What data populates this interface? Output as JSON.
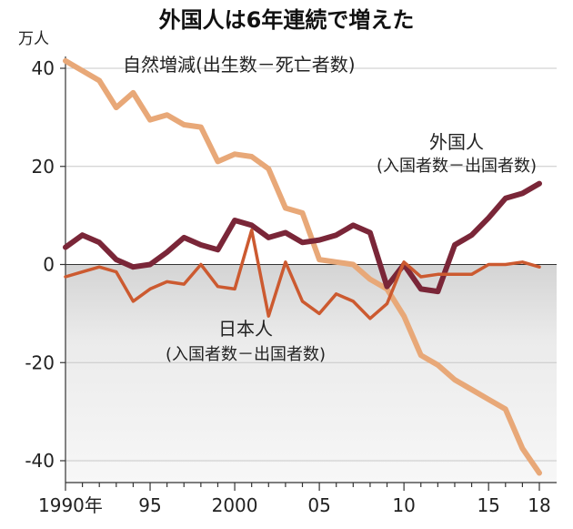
{
  "chart_data": {
    "type": "line",
    "title": "外国人は6年連続で増えた",
    "ylabel": "万人",
    "ylim": [
      -43,
      42
    ],
    "xlim": [
      1990,
      2018
    ],
    "yticks": [
      {
        "value": 40,
        "label": "40"
      },
      {
        "value": 20,
        "label": "20"
      },
      {
        "value": 0,
        "label": "0"
      },
      {
        "value": -20,
        "label": "-20"
      },
      {
        "value": -40,
        "label": "-40"
      }
    ],
    "xticks": [
      {
        "value": 1990,
        "label": "1990年"
      },
      {
        "value": 1995,
        "label": "95"
      },
      {
        "value": 2000,
        "label": "2000"
      },
      {
        "value": 2005,
        "label": "05"
      },
      {
        "value": 2010,
        "label": "10"
      },
      {
        "value": 2015,
        "label": "15"
      },
      {
        "value": 2018,
        "label": "18"
      }
    ],
    "x": [
      1990,
      1991,
      1992,
      1993,
      1994,
      1995,
      1996,
      1997,
      1998,
      1999,
      2000,
      2001,
      2002,
      2003,
      2004,
      2005,
      2006,
      2007,
      2008,
      2009,
      2010,
      2011,
      2012,
      2013,
      2014,
      2015,
      2016,
      2017,
      2018
    ],
    "series": [
      {
        "name": "自然増減",
        "name_sub": "(出生数－死亡者数)",
        "color": "#e8a878",
        "values": [
          41.5,
          39.5,
          37.5,
          32,
          35,
          29.5,
          30.5,
          28.5,
          28,
          21,
          22.5,
          22,
          19.5,
          11.5,
          10.5,
          1,
          0.5,
          0,
          -3,
          -5,
          -10.5,
          -18.5,
          -20.5,
          -23.5,
          -25.5,
          -27.5,
          -29.5,
          -37.5,
          -42.5
        ]
      },
      {
        "name": "外国人",
        "name_sub": "(入国者数－出国者数)",
        "color": "#7a2638",
        "values": [
          3.5,
          6,
          4.5,
          1,
          -0.5,
          0,
          2.5,
          5.5,
          4,
          3,
          9,
          8,
          5.5,
          6.5,
          4.5,
          5,
          6,
          8,
          6.5,
          -4.5,
          0,
          -5,
          -5.5,
          4,
          6,
          9.5,
          13.5,
          14.5,
          16.5
        ]
      },
      {
        "name": "日本人",
        "name_sub": "(入国者数－出国者数)",
        "color": "#cc5a30",
        "values": [
          -2.5,
          -1.5,
          -0.5,
          -1.5,
          -7.5,
          -5,
          -3.5,
          -4,
          0,
          -4.5,
          -5,
          7,
          -10.5,
          0.5,
          -7.5,
          -10,
          -6,
          -7.5,
          -11,
          -8,
          0.5,
          -2.5,
          -2,
          -2,
          -2,
          0,
          0,
          0.5,
          -0.5
        ]
      }
    ],
    "annotations": [
      {
        "series": "自然増減",
        "text": "自然増減(出生数－死亡者数)"
      },
      {
        "series": "外国人",
        "text": "外国人",
        "sub": "(入国者数－出国者数)"
      },
      {
        "series": "日本人",
        "text": "日本人",
        "sub": "(入国者数－出国者数)"
      }
    ]
  }
}
